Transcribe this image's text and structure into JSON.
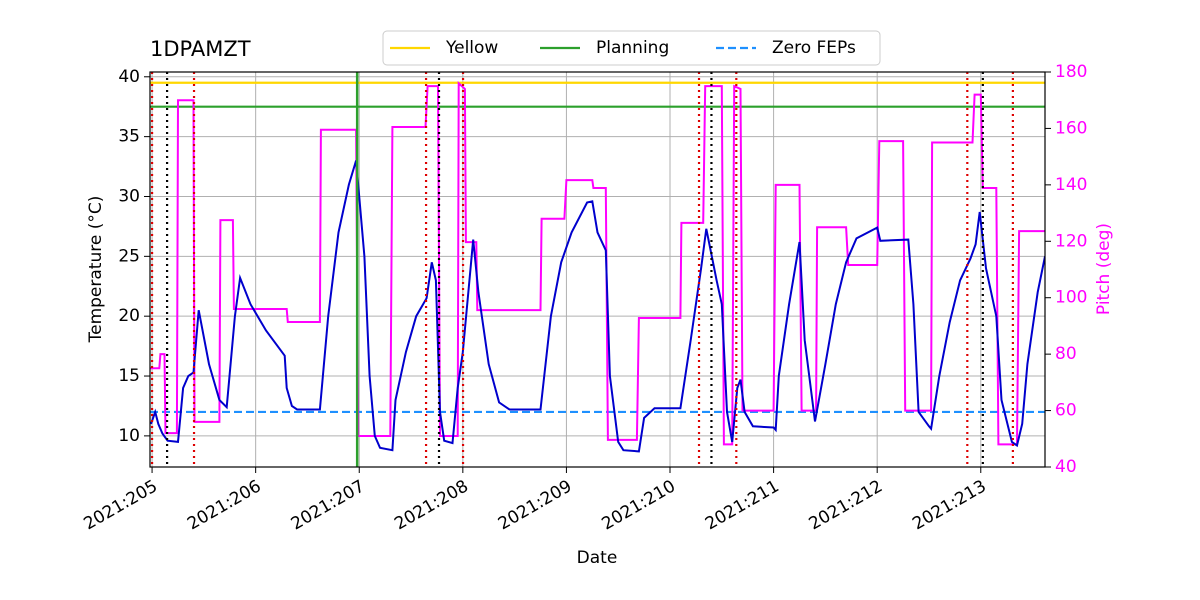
{
  "chart_data": {
    "type": "line",
    "title": "1DPAMZT",
    "xlabel": "Date",
    "ylabel": "Temperature (°C)",
    "y2label": "Pitch (deg)",
    "y2color": "#ff00ff",
    "xlim": [
      204.98,
      213.62
    ],
    "xticks": [
      {
        "value": 205,
        "label": "2021:205"
      },
      {
        "value": 206,
        "label": "2021:206"
      },
      {
        "value": 207,
        "label": "2021:207"
      },
      {
        "value": 208,
        "label": "2021:208"
      },
      {
        "value": 209,
        "label": "2021:209"
      },
      {
        "value": 210,
        "label": "2021:210"
      },
      {
        "value": 211,
        "label": "2021:211"
      },
      {
        "value": 212,
        "label": "2021:212"
      },
      {
        "value": 213,
        "label": "2021:213"
      }
    ],
    "ylim": [
      7.4,
      40.4
    ],
    "yticks": [
      10,
      15,
      20,
      25,
      30,
      35,
      40
    ],
    "y2lim": [
      40,
      180
    ],
    "y2ticks": [
      40,
      60,
      80,
      100,
      120,
      140,
      160,
      180
    ],
    "grid": true,
    "legend": "upper center",
    "hlines": [
      {
        "name": "Yellow",
        "value": 39.5,
        "color": "#ffd700",
        "dash": false
      },
      {
        "name": "Planning",
        "value": 37.5,
        "color": "#2ca02c",
        "dash": false
      },
      {
        "name": "Zero FEPs",
        "value": 12,
        "color": "#1e90ff",
        "dash": true
      }
    ],
    "vlines": [
      {
        "x": 205.0,
        "color": "#dd0000"
      },
      {
        "x": 205.405,
        "color": "#dd0000"
      },
      {
        "x": 207.645,
        "color": "#dd0000"
      },
      {
        "x": 208.002,
        "color": "#dd0000"
      },
      {
        "x": 210.28,
        "color": "#dd0000"
      },
      {
        "x": 210.64,
        "color": "#dd0000"
      },
      {
        "x": 212.87,
        "color": "#dd0000"
      },
      {
        "x": 213.31,
        "color": "#dd0000"
      },
      {
        "x": 205.145,
        "color": "#000000"
      },
      {
        "x": 207.77,
        "color": "#000000"
      },
      {
        "x": 210.4,
        "color": "#000000"
      },
      {
        "x": 213.02,
        "color": "#000000"
      }
    ],
    "planning_vline": {
      "x": 206.98,
      "color": "#2ca02c"
    },
    "series": [
      {
        "color": "#ff00ff",
        "axis": "y2",
        "x": [
          204.98,
          205.07,
          205.08,
          205.12,
          205.13,
          205.24,
          205.25,
          205.4,
          205.41,
          205.65,
          205.66,
          205.78,
          205.79,
          206.3,
          206.31,
          206.62,
          206.63,
          206.97,
          206.99,
          207.3,
          207.32,
          207.64,
          207.66,
          207.76,
          207.78,
          207.95,
          207.96,
          208.02,
          208.03,
          208.13,
          208.14,
          208.75,
          208.76,
          208.98,
          209.0,
          209.25,
          209.26,
          209.38,
          209.4,
          209.68,
          209.7,
          210.1,
          210.11,
          210.32,
          210.34,
          210.5,
          210.52,
          210.6,
          210.62,
          210.68,
          210.7,
          211.0,
          211.02,
          211.25,
          211.27,
          211.41,
          211.42,
          211.7,
          211.72,
          212.0,
          212.02,
          212.25,
          212.27,
          212.52,
          212.53,
          212.92,
          212.94,
          213.0,
          213.02,
          213.15,
          213.17,
          213.35,
          213.37,
          213.62
        ],
        "values": [
          75,
          75,
          80,
          80,
          52,
          52,
          170,
          170,
          56,
          56,
          127.5,
          127.5,
          96,
          96,
          91.4,
          91.4,
          159.5,
          159.5,
          51,
          51,
          160.5,
          160.5,
          175,
          175,
          51,
          51,
          176,
          174,
          119.7,
          119.7,
          95.6,
          95.6,
          128,
          128,
          141.7,
          141.7,
          138.9,
          138.9,
          49.6,
          49.6,
          92.8,
          92.8,
          126.5,
          126.5,
          175,
          175,
          48,
          48,
          175,
          174,
          60,
          60,
          140,
          140,
          60,
          60,
          125,
          125,
          111.6,
          111.6,
          155.5,
          155.5,
          60,
          60,
          155,
          155,
          172,
          172,
          138.9,
          138.9,
          48,
          48,
          123.6,
          123.6
        ]
      },
      {
        "color": "#0000cd",
        "axis": "y",
        "x": [
          204.99,
          205.03,
          205.06,
          205.1,
          205.15,
          205.25,
          205.3,
          205.35,
          205.4,
          205.45,
          205.55,
          205.65,
          205.72,
          205.8,
          205.85,
          205.95,
          206.1,
          206.28,
          206.3,
          206.35,
          206.4,
          206.62,
          206.7,
          206.8,
          206.9,
          206.97,
          207.05,
          207.1,
          207.15,
          207.2,
          207.32,
          207.35,
          207.45,
          207.55,
          207.65,
          207.7,
          207.74,
          207.78,
          207.82,
          207.9,
          207.95,
          208.0,
          208.1,
          208.15,
          208.25,
          208.35,
          208.45,
          208.75,
          208.85,
          208.95,
          209.05,
          209.2,
          209.25,
          209.3,
          209.38,
          209.42,
          209.5,
          209.55,
          209.7,
          209.75,
          209.85,
          210.1,
          210.2,
          210.3,
          210.35,
          210.45,
          210.5,
          210.55,
          210.6,
          210.65,
          210.68,
          210.72,
          210.8,
          211.0,
          211.02,
          211.05,
          211.15,
          211.25,
          211.3,
          211.4,
          211.5,
          211.6,
          211.7,
          211.8,
          212.0,
          212.03,
          212.3,
          212.35,
          212.4,
          212.5,
          212.52,
          212.6,
          212.7,
          212.8,
          212.9,
          212.95,
          212.99,
          213.05,
          213.15,
          213.2,
          213.3,
          213.35,
          213.4,
          213.45,
          213.55,
          213.62
        ],
        "values": [
          11,
          12,
          11,
          10.2,
          9.6,
          9.5,
          14,
          15,
          15.3,
          20.5,
          16,
          13,
          12.4,
          20,
          23.2,
          21,
          18.8,
          16.7,
          14,
          12.5,
          12.2,
          12.2,
          20,
          27,
          31,
          33,
          25,
          15,
          10,
          9,
          8.8,
          13,
          17,
          20,
          21.5,
          24.5,
          23,
          12,
          9.6,
          9.4,
          14,
          17,
          26.4,
          22,
          16,
          12.8,
          12.2,
          12.2,
          20,
          24.5,
          27,
          29.5,
          29.6,
          27,
          25.5,
          15,
          9.5,
          8.8,
          8.7,
          11.5,
          12.3,
          12.3,
          18,
          24,
          27.3,
          23,
          21,
          12,
          9.5,
          14,
          14.7,
          12,
          10.8,
          10.7,
          10.5,
          15,
          21,
          26.2,
          18,
          11.2,
          16,
          21,
          24.5,
          26.5,
          27.4,
          26.3,
          26.4,
          21,
          12,
          10.8,
          10.6,
          15,
          19.5,
          23,
          24.8,
          26,
          28.7,
          24,
          20,
          13,
          9.5,
          9.2,
          11,
          16,
          22,
          25
        ]
      }
    ]
  }
}
